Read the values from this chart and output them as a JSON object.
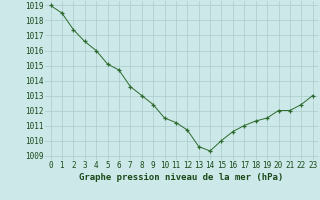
{
  "x": [
    0,
    1,
    2,
    3,
    4,
    5,
    6,
    7,
    8,
    9,
    10,
    11,
    12,
    13,
    14,
    15,
    16,
    17,
    18,
    19,
    20,
    21,
    22,
    23
  ],
  "y": [
    1019.0,
    1018.5,
    1017.4,
    1016.6,
    1016.0,
    1015.1,
    1014.7,
    1013.6,
    1013.0,
    1012.4,
    1011.5,
    1011.2,
    1010.7,
    1009.6,
    1009.3,
    1010.0,
    1010.6,
    1011.0,
    1011.3,
    1011.5,
    1012.0,
    1012.0,
    1012.4,
    1013.0
  ],
  "line_color": "#2d6a2d",
  "marker": "+",
  "bg_color": "#cce8e8",
  "grid_color": "#aacccc",
  "xlabel": "Graphe pression niveau de la mer (hPa)",
  "ylim_min": 1009,
  "ylim_max": 1019,
  "ytick_step": 1,
  "xtick_labels": [
    "0",
    "1",
    "2",
    "3",
    "4",
    "5",
    "6",
    "7",
    "8",
    "9",
    "10",
    "11",
    "12",
    "13",
    "14",
    "15",
    "16",
    "17",
    "18",
    "19",
    "20",
    "21",
    "22",
    "23"
  ],
  "label_color": "#1a4a1a",
  "xlabel_fontsize": 6.5,
  "tick_fontsize": 5.5,
  "ytick_fontsize": 5.5
}
